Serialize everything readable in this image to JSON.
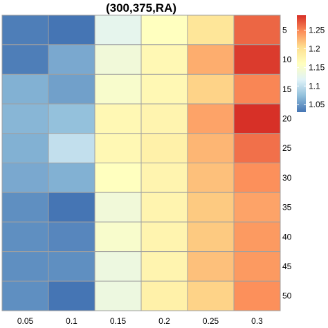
{
  "chart_data": {
    "type": "heatmap",
    "title": "(300,375,RA)",
    "x_categories": [
      "0.05",
      "0.1",
      "0.15",
      "0.2",
      "0.25",
      "0.3"
    ],
    "y_categories": [
      "5",
      "10",
      "15",
      "20",
      "25",
      "30",
      "35",
      "40",
      "45",
      "50"
    ],
    "values": [
      [
        1.035,
        1.03,
        1.125,
        1.16,
        1.195,
        1.265
      ],
      [
        1.035,
        1.06,
        1.14,
        1.17,
        1.23,
        1.285
      ],
      [
        1.065,
        1.055,
        1.15,
        1.17,
        1.21,
        1.25
      ],
      [
        1.068,
        1.075,
        1.17,
        1.175,
        1.235,
        1.29
      ],
      [
        1.065,
        1.1,
        1.17,
        1.18,
        1.225,
        1.26
      ],
      [
        1.06,
        1.065,
        1.16,
        1.175,
        1.22,
        1.245
      ],
      [
        1.045,
        1.03,
        1.14,
        1.175,
        1.215,
        1.235
      ],
      [
        1.045,
        1.04,
        1.15,
        1.175,
        1.215,
        1.24
      ],
      [
        1.045,
        1.045,
        1.135,
        1.175,
        1.22,
        1.24
      ],
      [
        1.045,
        1.03,
        1.135,
        1.18,
        1.21,
        1.245
      ]
    ],
    "color_scale": {
      "min": 1.03,
      "max": 1.29,
      "ticks": [
        1.05,
        1.1,
        1.15,
        1.2,
        1.25
      ],
      "tick_labels": [
        "1.05",
        "1.1",
        "1.15",
        "1.2",
        "1.25"
      ],
      "colors": [
        "#4575b4",
        "#91bfdb",
        "#e0f3f8",
        "#ffffbf",
        "#fee090",
        "#fc8d59",
        "#d73027"
      ]
    },
    "cell_border_color": "#a0a0a0",
    "y_axis_side": "right",
    "legend_placement": "right-top"
  }
}
